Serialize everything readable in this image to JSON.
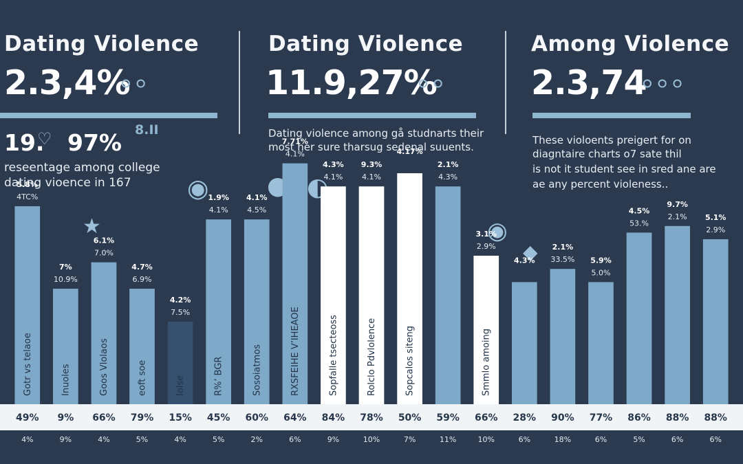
{
  "header": {
    "col1": {
      "title": "Dating Violence",
      "stat": "2.3,4%"
    },
    "col2": {
      "title": "Dating  Violence",
      "stat": "11.9,27%"
    },
    "col3": {
      "title": "Among  Violence",
      "stat": "2.3,74"
    }
  },
  "left_block": {
    "stat_a": "19.",
    "stat_b": "97%",
    "mark": "8.II",
    "line1": "reseentage among college",
    "line2": "dating vioence in 167"
  },
  "mid_block": {
    "line1": "Dating violence among gå studnarts their",
    "line2": "most her sure tharsug sedenal suuents."
  },
  "right_block": {
    "line1": "These violoents preigert for on",
    "line2": "diagntaire charts o7 sate thil",
    "line3": "is not it student see in sred ane are",
    "line4": "ae any percent violeness.."
  },
  "colors": {
    "background": "#2b3a4f",
    "bar_blue": "#7fa9c8",
    "bar_white": "#ffffff",
    "bar_dark": "#35516f",
    "strip": "#f1f4f7"
  },
  "chart_data": {
    "type": "bar",
    "title": "",
    "bars": [
      {
        "value": "49%",
        "sub": "4%",
        "top1": "5.8%",
        "top2": "4TC%",
        "inner": "Gotr vs telaoe",
        "color": "blue",
        "height": 0.6
      },
      {
        "value": "9%",
        "sub": "9%",
        "top1": "7%",
        "top2": "10.9%",
        "inner": "Inuoles",
        "color": "blue",
        "height": 0.35
      },
      {
        "value": "66%",
        "sub": "4%",
        "top1": "6.1%",
        "top2": "7.0%",
        "inner": "Goos Vlolaos",
        "color": "blue",
        "height": 0.43
      },
      {
        "value": "79%",
        "sub": "5%",
        "top1": "4.7%",
        "top2": "6.9%",
        "inner": "eoft soe",
        "color": "blue",
        "height": 0.35
      },
      {
        "value": "15%",
        "sub": "4%",
        "top1": "4.2%",
        "top2": "7.5%",
        "inner": "Iolse",
        "color": "dark",
        "height": 0.25
      },
      {
        "value": "45%",
        "sub": "5%",
        "top1": "1.9%",
        "top2": "4.1%",
        "inner": "R%’ BGR",
        "color": "blue",
        "height": 0.56
      },
      {
        "value": "60%",
        "sub": "2%",
        "top1": "4.1%",
        "top2": "4.5%",
        "inner": "Sosoiatmos",
        "color": "blue",
        "height": 0.56
      },
      {
        "value": "64%",
        "sub": "6%",
        "top1": "7.71%",
        "top2": "4.1%",
        "inner": "RXSFEIHE V’IHEAOE",
        "color": "blue",
        "height": 0.73
      },
      {
        "value": "84%",
        "sub": "9%",
        "top1": "4.3%",
        "top2": "4.1%",
        "inner": "Sopfalle tsecteoss",
        "color": "white",
        "height": 0.66
      },
      {
        "value": "78%",
        "sub": "10%",
        "top1": "9.3%",
        "top2": "4.1%",
        "inner": "Rolclo Pdvlolence",
        "color": "white",
        "height": 0.66
      },
      {
        "value": "50%",
        "sub": "7%",
        "top1": "4.17%",
        "top2": "",
        "inner": "Sopcalos siteng",
        "color": "white",
        "height": 0.7
      },
      {
        "value": "59%",
        "sub": "11%",
        "top1": "2.1%",
        "top2": "4.3%",
        "inner": "",
        "color": "blue",
        "height": 0.66
      },
      {
        "value": "66%",
        "sub": "10%",
        "top1": "3.1%",
        "top2": "2.9%",
        "inner": "Smmlo amoing",
        "color": "white",
        "height": 0.45
      },
      {
        "value": "28%",
        "sub": "6%",
        "top1": "4.3%",
        "top2": "",
        "inner": "",
        "color": "blue",
        "height": 0.37
      },
      {
        "value": "90%",
        "sub": "18%",
        "top1": "2.1%",
        "top2": "33.5%",
        "inner": "",
        "color": "blue",
        "height": 0.41
      },
      {
        "value": "77%",
        "sub": "6%",
        "top1": "5.9%",
        "top2": "5.0%",
        "inner": "",
        "color": "blue",
        "height": 0.37
      },
      {
        "value": "86%",
        "sub": "5%",
        "top1": "4.5%",
        "top2": "53.%",
        "inner": "",
        "color": "blue",
        "height": 0.52
      },
      {
        "value": "88%",
        "sub": "6%",
        "top1": "9.7%",
        "top2": "2.1%",
        "inner": "",
        "color": "blue",
        "height": 0.54
      },
      {
        "value": "88%",
        "sub": "6%",
        "top1": "5.1%",
        "top2": "2.9%",
        "inner": "",
        "color": "blue",
        "height": 0.5
      }
    ]
  }
}
